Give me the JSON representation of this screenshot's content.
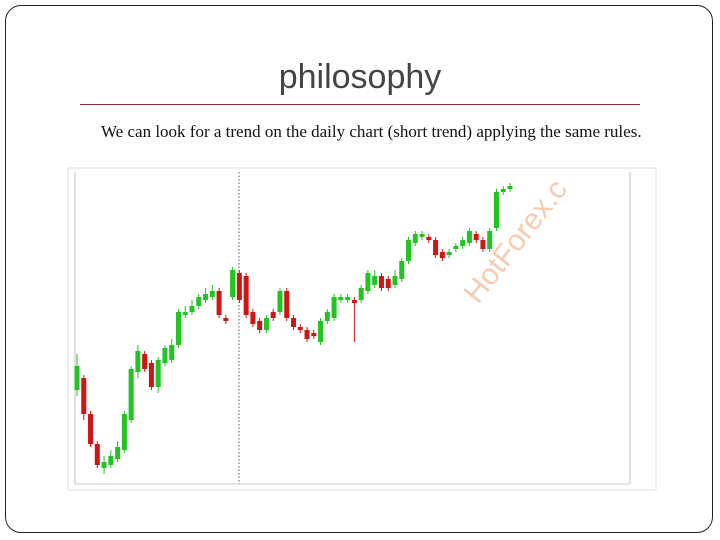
{
  "slide": {
    "title": "philosophy",
    "body": "We can look for a trend on the daily chart (short trend) applying the same rules.",
    "watermark": "HotForex.c"
  },
  "chart_data": {
    "type": "candlestick",
    "up_color": "#21c421",
    "down_color": "#d01515",
    "ylim": [
      0,
      100
    ],
    "open": [
      30,
      34,
      22,
      12,
      4,
      5,
      7,
      10,
      20,
      36,
      42,
      39,
      31,
      39,
      40,
      45,
      55,
      56,
      58,
      60,
      61,
      63,
      54,
      61,
      69,
      68,
      56,
      53,
      50,
      56,
      56,
      63,
      54,
      51,
      50,
      49,
      46,
      53,
      54,
      60,
      60,
      60,
      60,
      63,
      65,
      68,
      67,
      65,
      67,
      73,
      79,
      81,
      81,
      80,
      76,
      75,
      77,
      78,
      79,
      82,
      80,
      77,
      84,
      96,
      97
    ],
    "high": [
      42,
      35,
      23,
      13,
      8,
      10,
      13,
      23,
      38,
      45,
      43,
      40,
      41,
      45,
      47,
      57,
      58,
      60,
      62,
      64,
      65,
      64,
      55,
      71,
      70,
      69,
      57,
      54,
      55,
      57,
      64,
      64,
      55,
      52,
      51,
      50,
      54,
      57,
      62,
      62,
      62,
      61,
      65,
      70,
      70,
      69,
      68,
      70,
      74,
      81,
      83,
      83,
      82,
      81,
      77,
      77,
      79,
      81,
      84,
      83,
      81,
      84,
      97,
      98,
      99
    ],
    "low": [
      28,
      20,
      11,
      4,
      2,
      4,
      6,
      9,
      19,
      34,
      36,
      30,
      29,
      38,
      39,
      44,
      54,
      55,
      57,
      59,
      60,
      54,
      52,
      60,
      59,
      54,
      51,
      49,
      49,
      53,
      55,
      53,
      50,
      49,
      46,
      47,
      45,
      52,
      53,
      59,
      59,
      46,
      59,
      62,
      64,
      63,
      63,
      64,
      66,
      72,
      78,
      80,
      79,
      74,
      73,
      74,
      76,
      77,
      78,
      79,
      76,
      76,
      83,
      95,
      96
    ],
    "close": [
      38,
      22,
      12,
      5,
      6,
      8,
      11,
      22,
      37,
      43,
      37,
      31,
      40,
      44,
      45,
      56,
      56,
      58,
      61,
      62,
      63,
      55,
      53,
      70,
      60,
      55,
      52,
      50,
      54,
      54,
      63,
      54,
      51,
      50,
      47,
      48,
      53,
      56,
      61,
      61,
      61,
      59,
      64,
      69,
      68,
      64,
      64,
      68,
      73,
      80,
      82,
      82,
      80,
      75,
      74,
      76,
      78,
      80,
      83,
      80,
      77,
      83,
      96,
      97,
      98
    ]
  }
}
